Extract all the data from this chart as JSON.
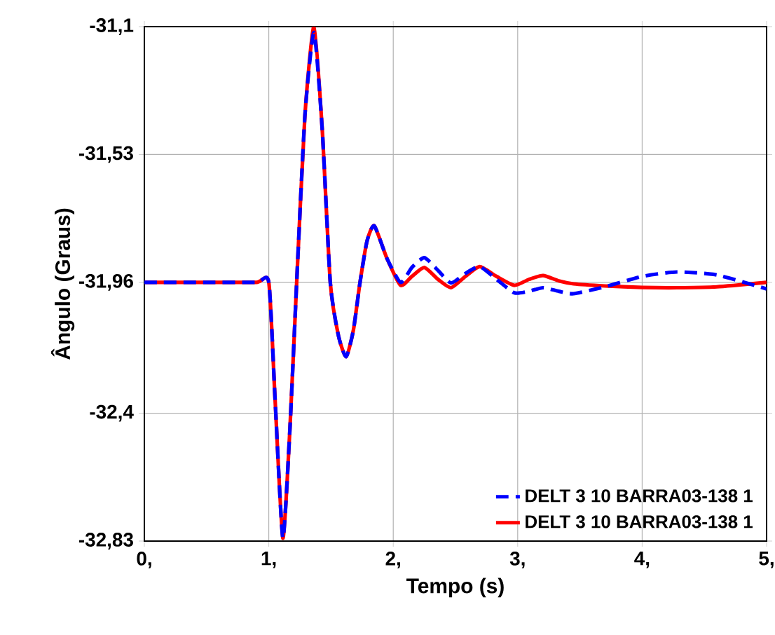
{
  "chart_data": {
    "type": "line",
    "xlabel": "Tempo (s)",
    "ylabel": "Ângulo (Graus)",
    "x": [
      0,
      0.5,
      0.9,
      1.0,
      1.05,
      1.113,
      1.17,
      1.224,
      1.29,
      1.363,
      1.43,
      1.494,
      1.56,
      1.622,
      1.68,
      1.733,
      1.79,
      1.848,
      1.95,
      2.059,
      2.15,
      2.25,
      2.36,
      2.464,
      2.58,
      2.695,
      2.83,
      2.973,
      3.09,
      3.204,
      3.33,
      3.45,
      3.7,
      4.0,
      4.28,
      4.6,
      5.0
    ],
    "series": [
      {
        "name": "DELT 3 10 BARRA03-138 1",
        "color": "#ff0000",
        "line_style": "solid",
        "values": [
          -31.96,
          -31.96,
          -31.96,
          -31.96,
          -32.35,
          -32.82,
          -32.45,
          -31.96,
          -31.4,
          -31.1,
          -31.45,
          -31.96,
          -32.14,
          -32.21,
          -32.12,
          -31.96,
          -31.82,
          -31.77,
          -31.88,
          -31.97,
          -31.94,
          -31.91,
          -31.95,
          -31.978,
          -31.94,
          -31.907,
          -31.94,
          -31.97,
          -31.95,
          -31.937,
          -31.955,
          -31.965,
          -31.972,
          -31.977,
          -31.978,
          -31.975,
          -31.96
        ]
      },
      {
        "name": "DELT 3 10 BARRA03-138 1",
        "color": "#0000ff",
        "line_style": "dashed",
        "values": [
          -31.96,
          -31.96,
          -31.96,
          -31.96,
          -32.35,
          -32.82,
          -32.45,
          -31.96,
          -31.4,
          -31.12,
          -31.45,
          -31.96,
          -32.14,
          -32.21,
          -32.12,
          -31.96,
          -31.82,
          -31.77,
          -31.88,
          -31.96,
          -31.91,
          -31.877,
          -31.92,
          -31.962,
          -31.93,
          -31.907,
          -31.95,
          -31.995,
          -31.99,
          -31.978,
          -31.99,
          -31.998,
          -31.975,
          -31.94,
          -31.925,
          -31.935,
          -31.982
        ]
      }
    ],
    "xlim": [
      0,
      5
    ],
    "ylim": [
      -32.83,
      -31.1
    ],
    "xticks": [
      {
        "value": 0,
        "label": "0,"
      },
      {
        "value": 1,
        "label": "1,"
      },
      {
        "value": 2,
        "label": "2,"
      },
      {
        "value": 3,
        "label": "3,"
      },
      {
        "value": 4,
        "label": "4,"
      },
      {
        "value": 5,
        "label": "5,"
      }
    ],
    "yticks": [
      {
        "value": -32.83,
        "label": "-32,83"
      },
      {
        "value": -32.4,
        "label": "-32,4"
      },
      {
        "value": -31.96,
        "label": "-31,96"
      },
      {
        "value": -31.53,
        "label": "-31,53"
      },
      {
        "value": -31.1,
        "label": "-31,1"
      }
    ],
    "grid": true,
    "legend": "bottom right",
    "marker": "none"
  }
}
